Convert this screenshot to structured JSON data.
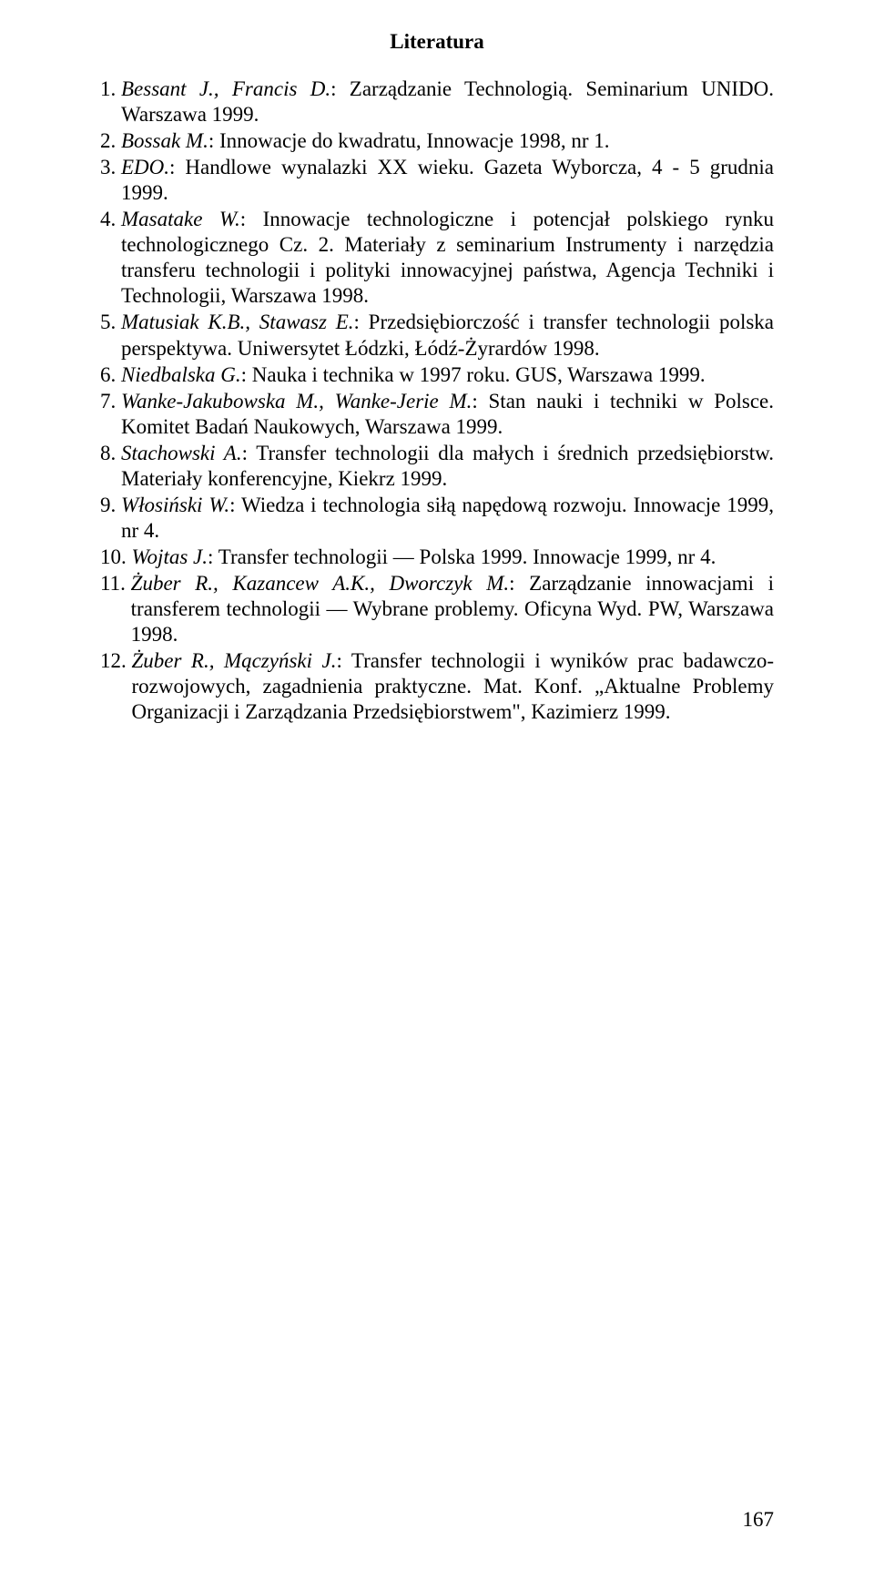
{
  "heading": "Literatura",
  "page_number": "167",
  "items": [
    {
      "num": "1. ",
      "segments": [
        {
          "italic": true,
          "text": "Bessant J., Francis D."
        },
        {
          "italic": false,
          "text": ": Zarządzanie Technologią. Seminarium UNIDO. Warszawa 1999."
        }
      ]
    },
    {
      "num": "2. ",
      "segments": [
        {
          "italic": true,
          "text": "Bossak M."
        },
        {
          "italic": false,
          "text": ": Innowacje do kwadratu, Innowacje 1998, nr 1."
        }
      ]
    },
    {
      "num": "3. ",
      "segments": [
        {
          "italic": true,
          "text": "EDO."
        },
        {
          "italic": false,
          "text": ": Handlowe wynalazki XX wieku. Gazeta Wyborcza, 4 - 5 grudnia 1999."
        }
      ]
    },
    {
      "num": "4. ",
      "segments": [
        {
          "italic": true,
          "text": "Masatake W."
        },
        {
          "italic": false,
          "text": ": Innowacje technologiczne i potencjał polskiego rynku technologicznego Cz. 2. Materiały z seminarium Instrumenty i narzędzia transferu technologii i polityki innowacyjnej państwa, Agencja Techniki i Technologii, Warszawa 1998."
        }
      ]
    },
    {
      "num": "5. ",
      "segments": [
        {
          "italic": true,
          "text": "Matusiak K.B., Stawasz E."
        },
        {
          "italic": false,
          "text": ": Przedsiębiorczość i transfer technologii polska perspektywa. Uniwersytet Łódzki, Łódź-Żyrardów 1998."
        }
      ]
    },
    {
      "num": "6. ",
      "segments": [
        {
          "italic": true,
          "text": "Niedbalska G."
        },
        {
          "italic": false,
          "text": ": Nauka i technika w 1997 roku. GUS, Warszawa 1999."
        }
      ]
    },
    {
      "num": "7. ",
      "segments": [
        {
          "italic": true,
          "text": "Wanke-Jakubowska M., Wanke-Jerie M."
        },
        {
          "italic": false,
          "text": ": Stan nauki i techniki w Polsce. Komitet Badań Naukowych, Warszawa 1999."
        }
      ]
    },
    {
      "num": "8. ",
      "segments": [
        {
          "italic": true,
          "text": "Stachowski A."
        },
        {
          "italic": false,
          "text": ": Transfer technologii dla małych i średnich przedsiębiorstw. Materiały konferencyjne, Kiekrz 1999."
        }
      ]
    },
    {
      "num": "9. ",
      "segments": [
        {
          "italic": true,
          "text": "Włosiński W."
        },
        {
          "italic": false,
          "text": ": Wiedza i technologia siłą napędową rozwoju. Innowacje 1999, nr 4."
        }
      ]
    },
    {
      "num": "10. ",
      "segments": [
        {
          "italic": true,
          "text": "Wojtas J."
        },
        {
          "italic": false,
          "text": ": Transfer technologii — Polska 1999. Innowacje 1999, nr 4."
        }
      ]
    },
    {
      "num": "11. ",
      "segments": [
        {
          "italic": true,
          "text": "Żuber R., Kazancew A.K., Dworczyk M."
        },
        {
          "italic": false,
          "text": ": Zarządzanie innowacjami i transferem technologii — Wybrane problemy. Oficyna Wyd. PW, Warszawa 1998."
        }
      ]
    },
    {
      "num": "12. ",
      "segments": [
        {
          "italic": true,
          "text": "Żuber R., Mączyński J."
        },
        {
          "italic": false,
          "text": ": Transfer technologii i wyników prac badawczo-rozwojowych, zagadnienia praktyczne. Mat. Konf. „Aktualne Problemy Organizacji i Zarządzania Przedsiębiorstwem\", Kazimierz 1999."
        }
      ]
    }
  ]
}
